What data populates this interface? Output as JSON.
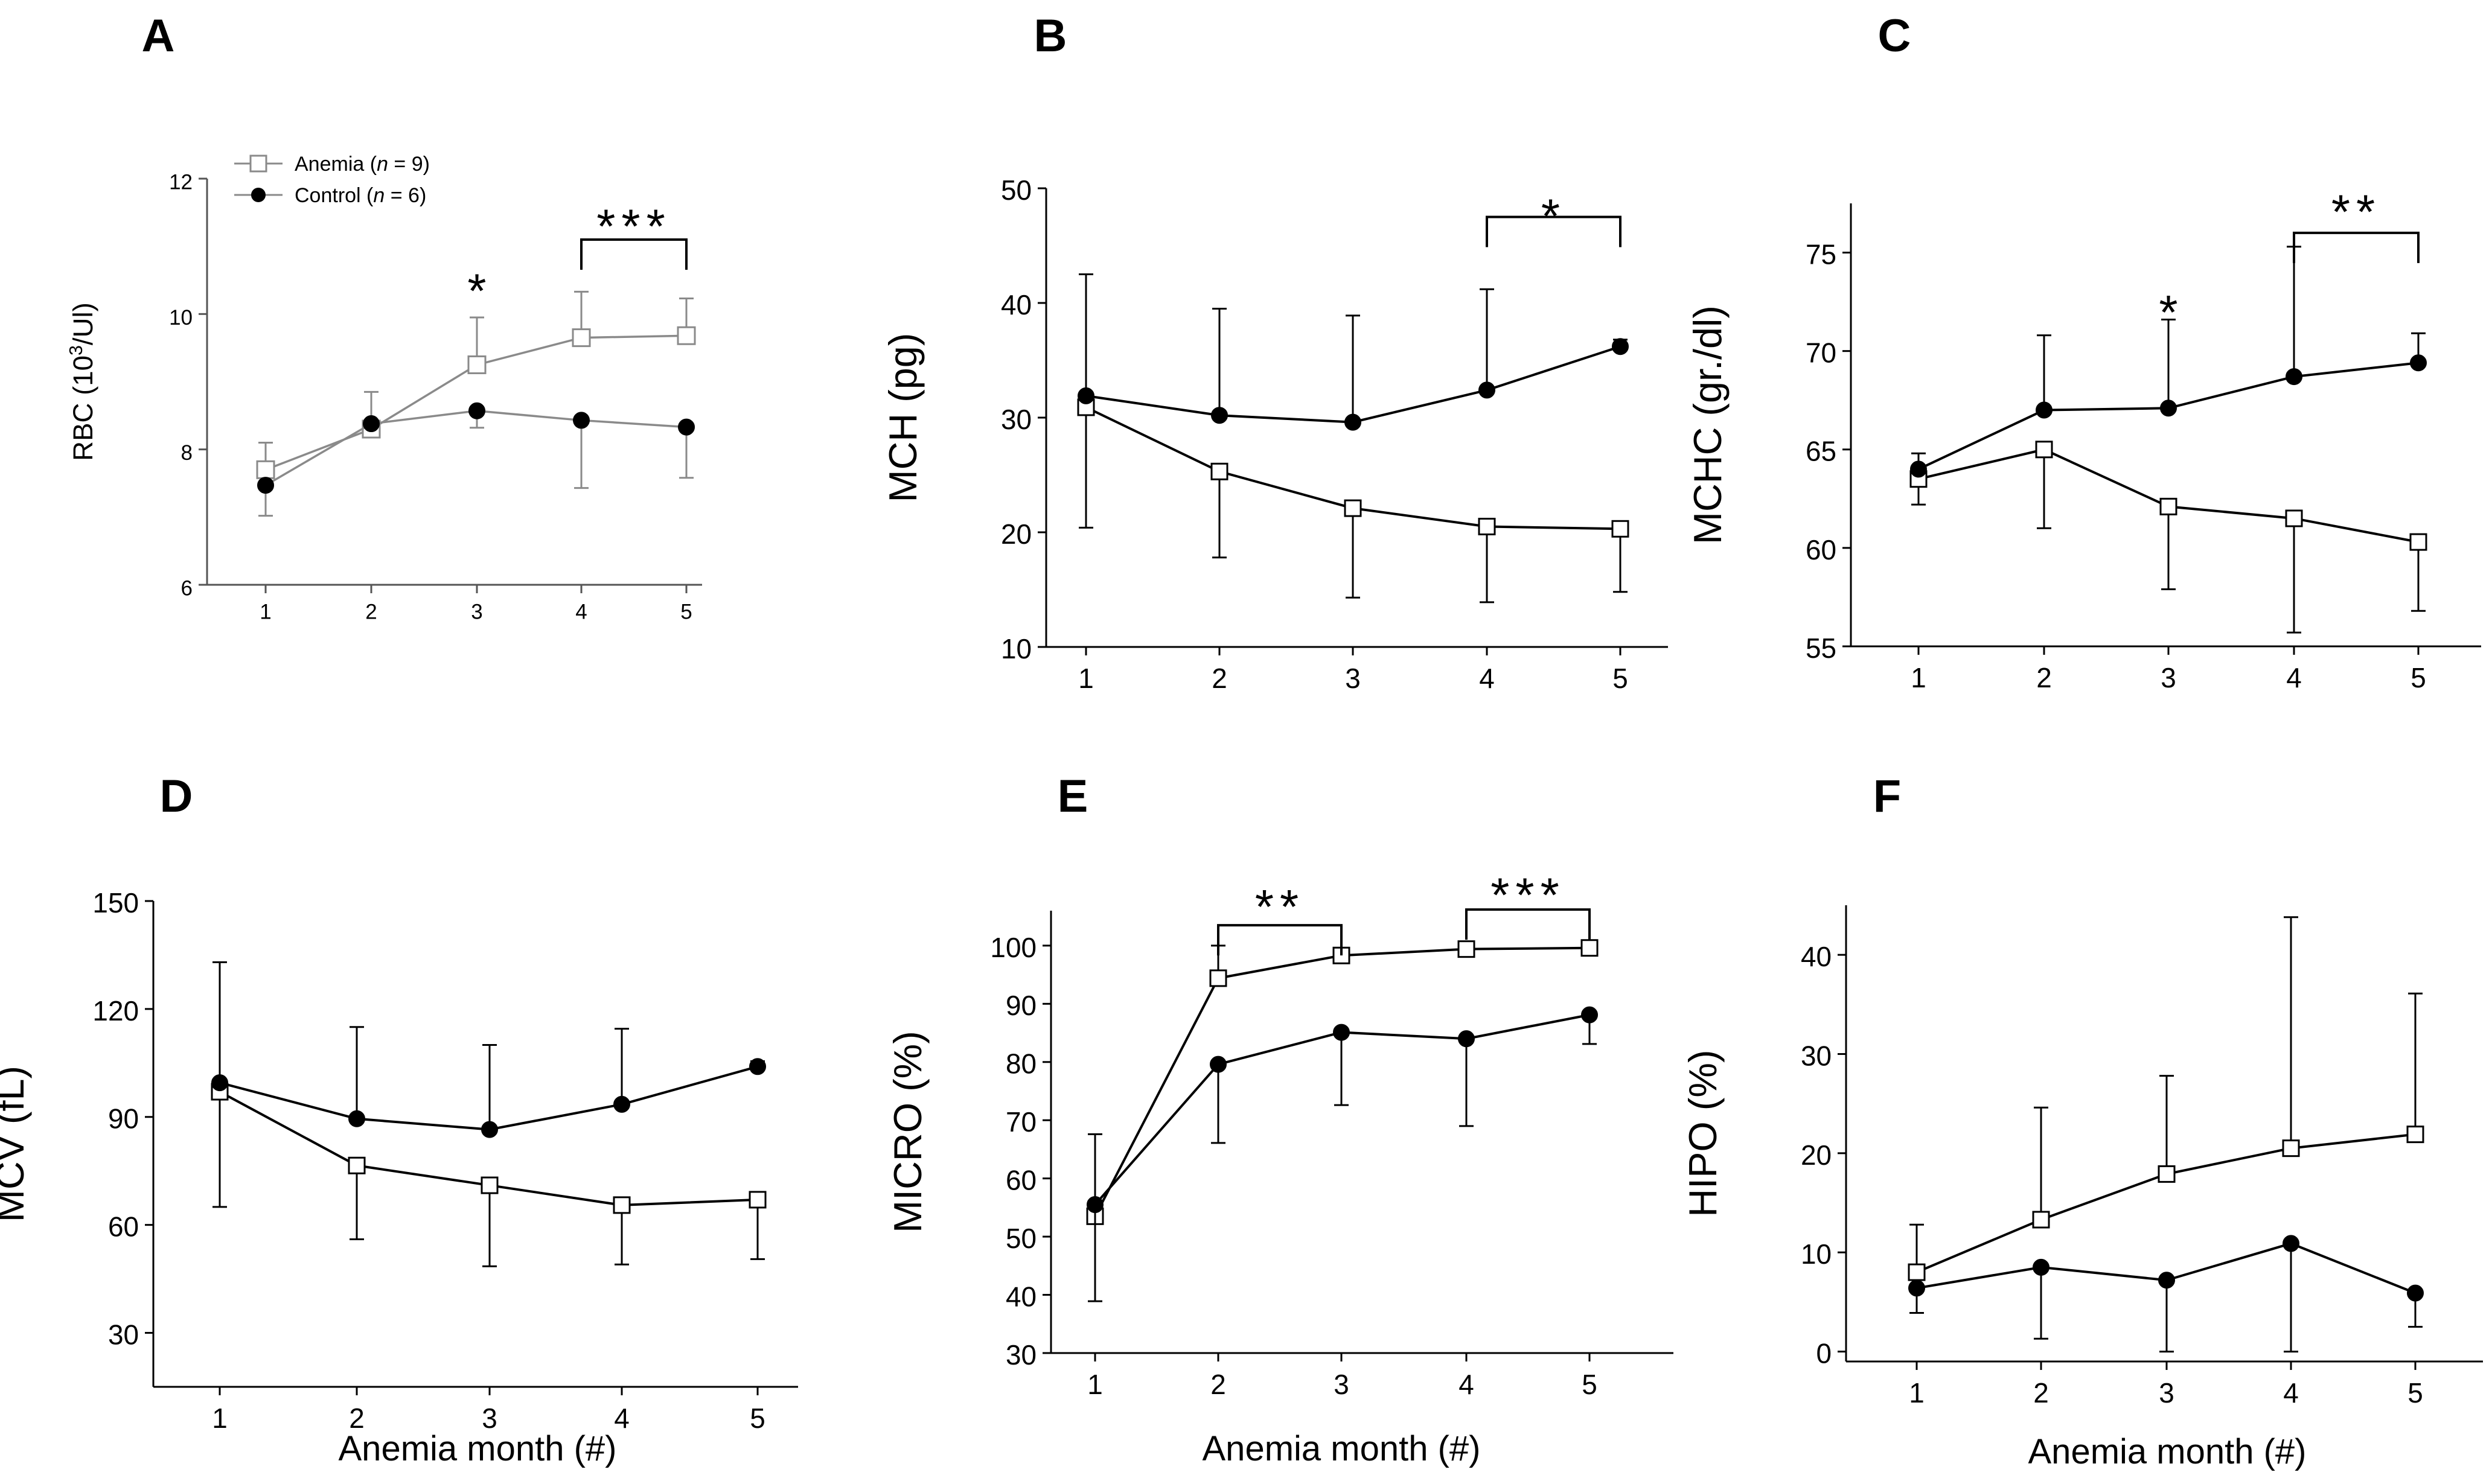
{
  "figure": {
    "xlabel": "Anemia month (#)",
    "colors": {
      "anemia_marker": "#ffffff",
      "control_marker": "#000000",
      "line_dark": "#000000",
      "line_grey": "#8a8a8a"
    }
  },
  "chart_data": [
    {
      "type": "line",
      "panel_label": "A",
      "ylabel": "RBC (10",
      "ylabel_sup": "3",
      "ylabel_tail": "/Ul)",
      "xlabel": "",
      "x": [
        1,
        2,
        3,
        4,
        5
      ],
      "xticks": [
        "1",
        "2",
        "3",
        "4",
        "5"
      ],
      "ylim": [
        6,
        12
      ],
      "yticks": [
        6,
        8,
        10,
        12
      ],
      "legend": {
        "position": "top-left",
        "entries": [
          {
            "prefix": "Anemia (",
            "italic": "n",
            "suffix": " = 9)"
          },
          {
            "prefix": "Control (",
            "italic": "n",
            "suffix": " = 6)"
          }
        ]
      },
      "series": [
        {
          "name": "Anemia",
          "marker": "square",
          "values": [
            7.7,
            8.3,
            9.25,
            9.65,
            9.68
          ],
          "err_up": [
            0.4,
            0.55,
            0.7,
            0.68,
            0.55
          ],
          "err_down": [
            0,
            0,
            0,
            0,
            0
          ]
        },
        {
          "name": "Control",
          "marker": "circle",
          "values": [
            7.47,
            8.38,
            8.57,
            8.43,
            8.33
          ],
          "err_up": [
            0,
            0,
            0,
            0,
            0
          ],
          "err_down": [
            0.45,
            0,
            0.25,
            1.0,
            0.75
          ]
        }
      ],
      "annotations": [
        {
          "text": "*",
          "x": 3,
          "y": 10.5
        },
        {
          "text": "***",
          "bracket": [
            4,
            5
          ],
          "y": 11.1,
          "text_y": 11.45
        }
      ]
    },
    {
      "type": "line",
      "panel_label": "B",
      "ylabel": "MCH (pg)",
      "xlabel": "",
      "x": [
        1,
        2,
        3,
        4,
        5
      ],
      "xticks": [
        "1",
        "2",
        "3",
        "4",
        "5"
      ],
      "ylim": [
        10,
        50
      ],
      "yticks": [
        10,
        20,
        30,
        40,
        50
      ],
      "series": [
        {
          "name": "Anemia",
          "marker": "square",
          "values": [
            30.9,
            25.3,
            22.1,
            20.5,
            20.3
          ],
          "err_up": [
            0,
            0,
            0,
            0,
            0
          ],
          "err_down": [
            10.5,
            7.5,
            7.8,
            6.6,
            5.5
          ]
        },
        {
          "name": "Control",
          "marker": "circle",
          "values": [
            31.9,
            30.2,
            29.6,
            32.4,
            36.2
          ],
          "err_up": [
            10.6,
            9.3,
            9.3,
            8.8,
            0.6
          ],
          "err_down": [
            0,
            0,
            0,
            0,
            0
          ]
        }
      ],
      "annotations": [
        {
          "text": "*",
          "bracket": [
            4,
            5
          ],
          "y": 47.5,
          "text_y": 48.5
        }
      ]
    },
    {
      "type": "line",
      "panel_label": "C",
      "ylabel": "MCHC (gr./dl)",
      "xlabel": "",
      "x": [
        1,
        2,
        3,
        4,
        5
      ],
      "xticks": [
        "1",
        "2",
        "3",
        "4",
        "5"
      ],
      "ylim": [
        55,
        77.5
      ],
      "yticks": [
        55,
        60,
        65,
        70,
        75
      ],
      "series": [
        {
          "name": "Anemia",
          "marker": "square",
          "values": [
            63.5,
            65.0,
            62.1,
            61.5,
            60.3
          ],
          "err_up": [
            0,
            0,
            0,
            0,
            0
          ],
          "err_down": [
            1.3,
            4.0,
            4.2,
            5.8,
            3.5
          ]
        },
        {
          "name": "Control",
          "marker": "circle",
          "values": [
            64.0,
            67.0,
            67.1,
            68.7,
            69.4
          ],
          "err_up": [
            0.8,
            3.8,
            4.5,
            6.6,
            1.5
          ],
          "err_down": [
            0,
            0,
            0,
            0,
            0
          ]
        }
      ],
      "annotations": [
        {
          "text": "*",
          "x": 3,
          "y": 72.5
        },
        {
          "text": "**",
          "bracket": [
            4,
            5
          ],
          "y": 76.0,
          "text_y": 77.6
        }
      ]
    },
    {
      "type": "line",
      "panel_label": "D",
      "ylabel": "MCV (fL)",
      "xlabel": "Anemia month (#)",
      "x": [
        1,
        2,
        3,
        4,
        5
      ],
      "xticks": [
        "1",
        "2",
        "3",
        "4",
        "5"
      ],
      "ylim": [
        15,
        150
      ],
      "yticks": [
        30,
        60,
        90,
        120,
        150
      ],
      "series": [
        {
          "name": "Anemia",
          "marker": "square",
          "values": [
            97,
            76.5,
            71,
            65.5,
            67
          ],
          "err_up": [
            0,
            0,
            0,
            0,
            0
          ],
          "err_down": [
            32,
            20.5,
            22.5,
            16.5,
            16.5
          ]
        },
        {
          "name": "Control",
          "marker": "circle",
          "values": [
            99.5,
            89.5,
            86.5,
            93.5,
            104
          ],
          "err_up": [
            33.5,
            25.5,
            23.5,
            21,
            1.5
          ],
          "err_down": [
            0,
            0,
            0,
            0,
            0
          ]
        }
      ],
      "annotations": []
    },
    {
      "type": "line",
      "panel_label": "E",
      "ylabel": "MICRO (%)",
      "xlabel": "Anemia month (#)",
      "x": [
        1,
        2,
        3,
        4,
        5
      ],
      "xticks": [
        "1",
        "2",
        "3",
        "4",
        "5"
      ],
      "ylim": [
        30,
        106
      ],
      "yticks": [
        30,
        40,
        50,
        60,
        70,
        80,
        90,
        100
      ],
      "series": [
        {
          "name": "Anemia",
          "marker": "square",
          "values": [
            53.5,
            94.4,
            98.3,
            99.4,
            99.6
          ],
          "err_up": [
            0,
            5.6,
            0,
            0,
            0
          ],
          "err_down": [
            0,
            0,
            0,
            0,
            0
          ]
        },
        {
          "name": "Control",
          "marker": "circle",
          "values": [
            55.5,
            79.6,
            85.1,
            84.0,
            88.1
          ],
          "err_up": [
            12.1,
            0,
            0,
            0,
            0
          ],
          "err_down": [
            16.6,
            13.5,
            12.5,
            15.0,
            5.0
          ]
        }
      ],
      "annotations": [
        {
          "text": "**",
          "bracket": [
            2,
            3
          ],
          "y": 103.5,
          "text_y": 108.5
        },
        {
          "text": "***",
          "bracket": [
            4,
            5
          ],
          "y": 106.2,
          "text_y": 110.5
        }
      ]
    },
    {
      "type": "line",
      "panel_label": "F",
      "ylabel": "HIPO (%)",
      "xlabel": "Anemia month (#)",
      "x": [
        1,
        2,
        3,
        4,
        5
      ],
      "xticks": [
        "1",
        "2",
        "3",
        "4",
        "5"
      ],
      "ylim": [
        -1,
        45
      ],
      "yticks": [
        0,
        10,
        20,
        30,
        40
      ],
      "series": [
        {
          "name": "Anemia",
          "marker": "square",
          "values": [
            8.0,
            13.3,
            17.9,
            20.5,
            21.9
          ],
          "err_up": [
            4.8,
            11.3,
            9.9,
            23.3,
            14.2
          ],
          "err_down": [
            0,
            0,
            0,
            0,
            0
          ]
        },
        {
          "name": "Control",
          "marker": "circle",
          "values": [
            6.4,
            8.5,
            7.2,
            10.9,
            5.9
          ],
          "err_up": [
            0,
            0,
            0,
            0,
            0
          ],
          "err_down": [
            2.5,
            7.2,
            7.2,
            10.9,
            3.4
          ]
        }
      ],
      "annotations": []
    }
  ]
}
